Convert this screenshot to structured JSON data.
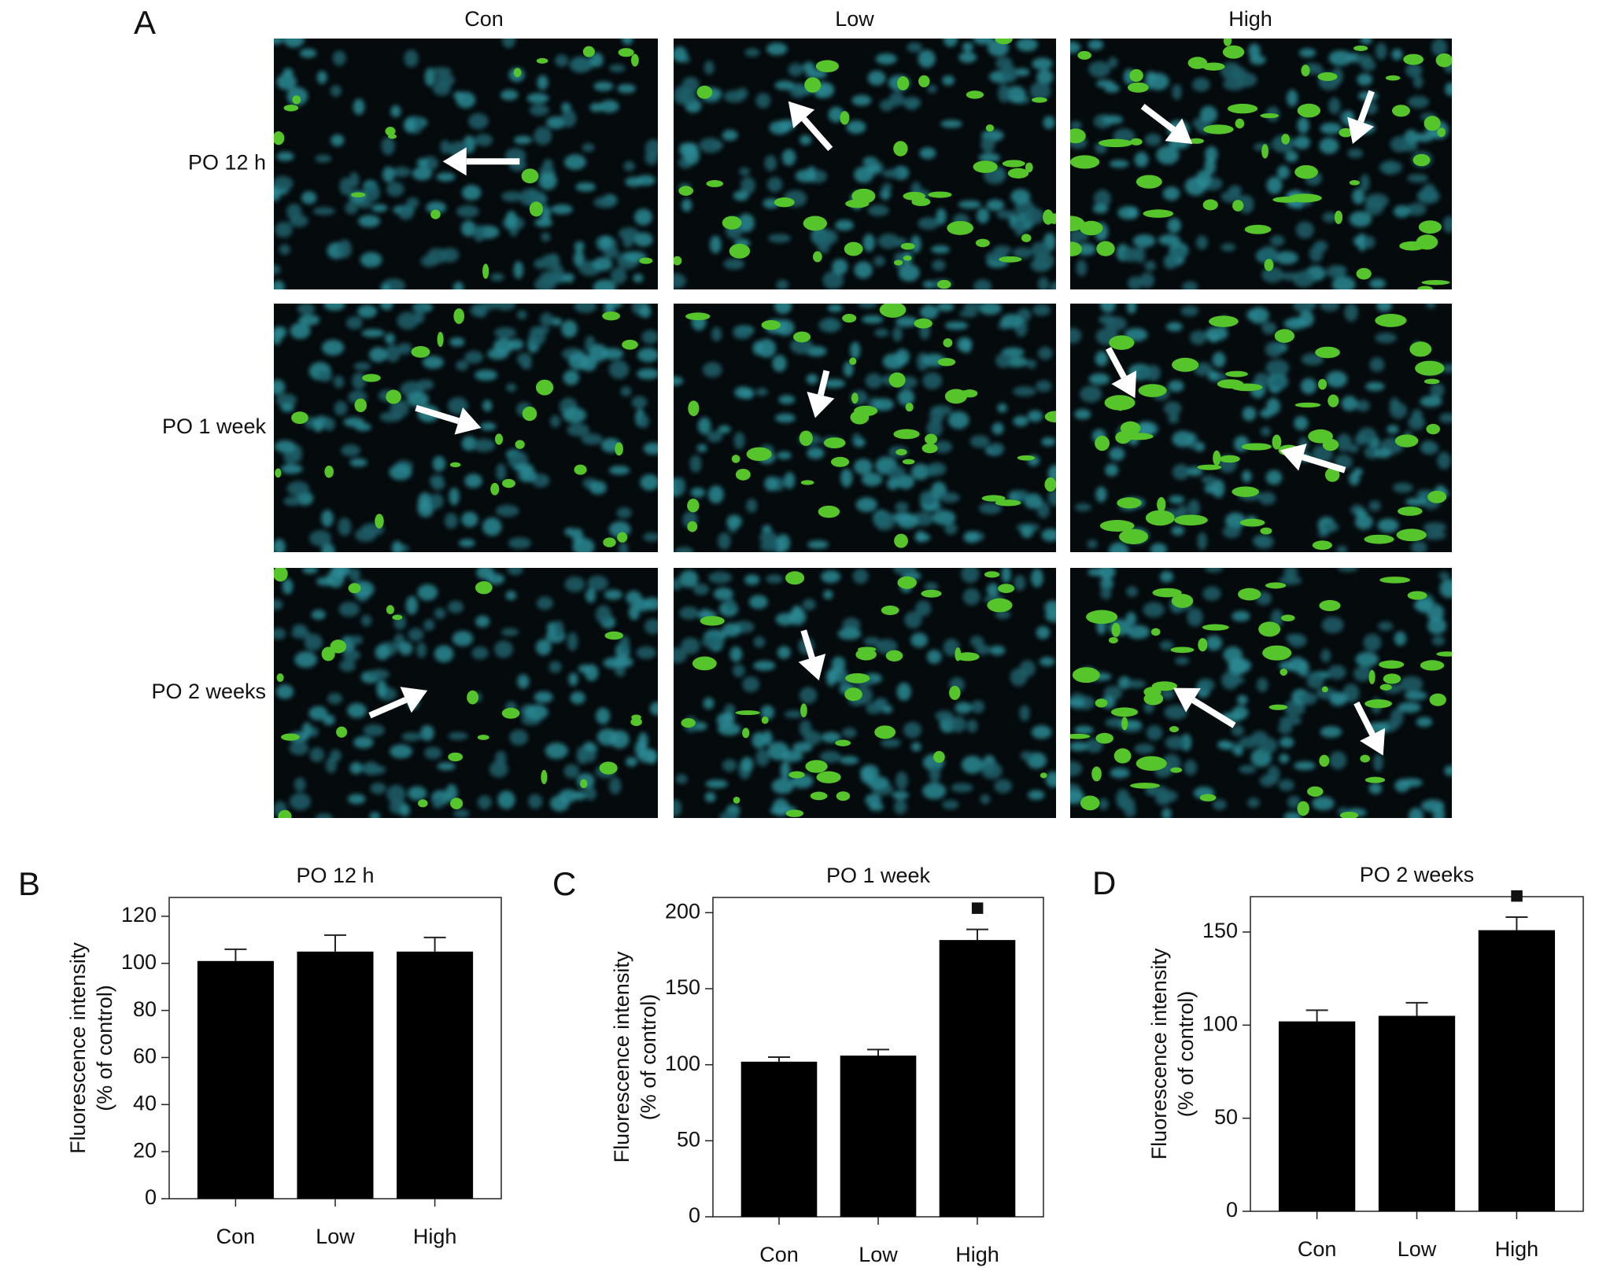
{
  "panel_a": {
    "label": "A",
    "columns": [
      "Con",
      "Low",
      "High"
    ],
    "rows": [
      "PO 12 h",
      "PO 1 week",
      "PO 2 weeks"
    ]
  },
  "chart_data": [
    {
      "type": "bar",
      "panel": "B",
      "title": "PO 12 h",
      "ylabel": [
        "Fluorescence intensity",
        "(% of control)"
      ],
      "categories": [
        "Con",
        "Low",
        "High"
      ],
      "values": [
        101,
        105,
        105
      ],
      "errors": [
        5,
        7,
        6
      ],
      "color": "#000000",
      "ylim": [
        0,
        128
      ],
      "yticks": [
        0,
        20,
        40,
        60,
        80,
        100,
        120
      ]
    },
    {
      "type": "bar",
      "panel": "C",
      "title": "PO 1 week",
      "ylabel": [
        "Fluorescence intensity",
        "(% of control)"
      ],
      "categories": [
        "Con",
        "Low",
        "High"
      ],
      "values": [
        102,
        106,
        182
      ],
      "errors": [
        3,
        4,
        7
      ],
      "color": "#000000",
      "ylim": [
        0,
        210
      ],
      "yticks": [
        0,
        50,
        100,
        150,
        200
      ],
      "annotations": [
        {
          "text": "■",
          "x": "High"
        }
      ]
    },
    {
      "type": "bar",
      "panel": "D",
      "title": "PO 2 weeks",
      "ylabel": [
        "Fluorescence intensity",
        "(% of control)"
      ],
      "categories": [
        "Con",
        "Low",
        "High"
      ],
      "values": [
        102,
        105,
        151
      ],
      "errors": [
        6,
        7,
        7
      ],
      "color": "#000000",
      "ylim": [
        0,
        169
      ],
      "yticks": [
        0,
        50,
        100,
        150
      ],
      "annotations": [
        {
          "text": "■",
          "x": "High"
        }
      ]
    }
  ]
}
